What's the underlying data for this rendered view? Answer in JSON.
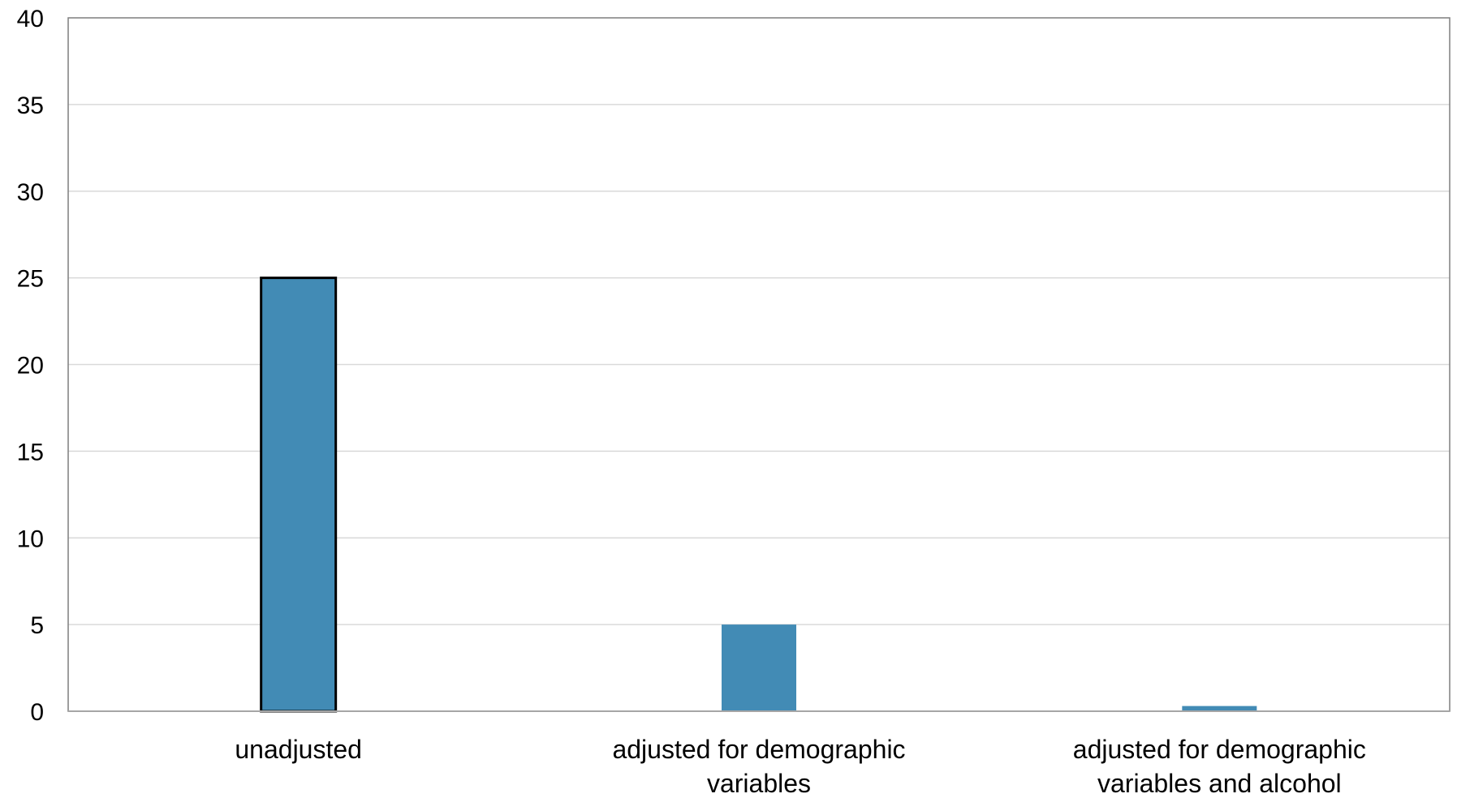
{
  "chart_data": {
    "type": "bar",
    "title": "",
    "xlabel": "",
    "ylabel": "",
    "ylim": [
      0,
      40
    ],
    "yticks": [
      0,
      5,
      10,
      15,
      20,
      25,
      30,
      35,
      40
    ],
    "grid": true,
    "categories": [
      [
        "unadjusted"
      ],
      [
        "adjusted for demographic",
        "variables"
      ],
      [
        "adjusted for demographic",
        "variables and alcohol"
      ]
    ],
    "values": [
      25,
      5,
      0.3
    ],
    "colors": {
      "bar": "#428bb5",
      "gridline": "#d9d9d9",
      "axis": "#a6a6a6",
      "highlight_outline": "#000000"
    },
    "highlighted_bar_index": 0
  }
}
